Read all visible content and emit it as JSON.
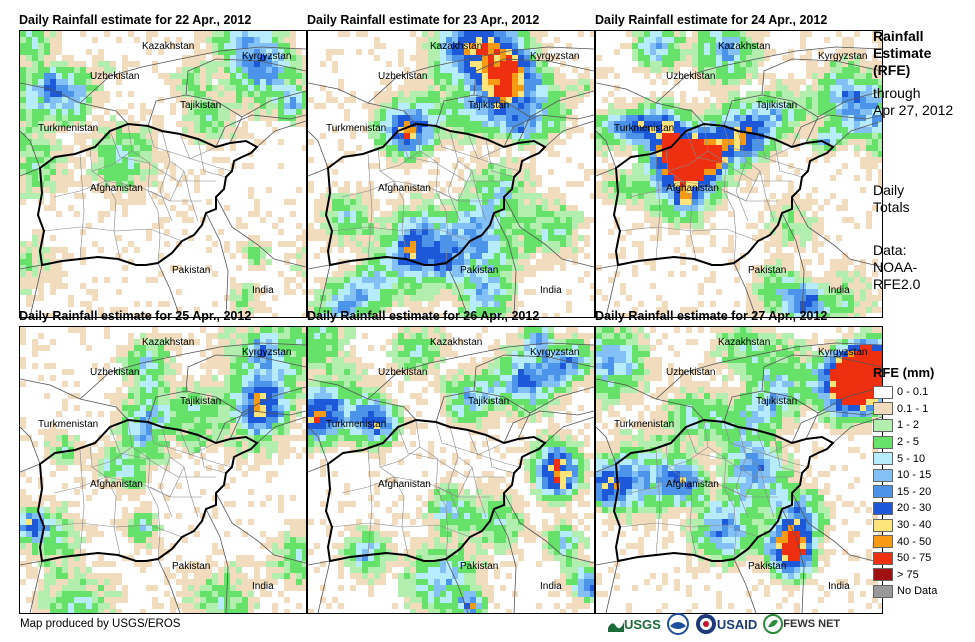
{
  "panels": [
    {
      "title": "Daily Rainfall estimate for 22 Apr., 2012",
      "date": "22 Apr., 2012",
      "seed": 22,
      "density": 0.9
    },
    {
      "title": "Daily Rainfall estimate for 23 Apr., 2012",
      "date": "23 Apr., 2012",
      "seed": 23,
      "density": 1.0
    },
    {
      "title": "Daily Rainfall estimate for 24 Apr., 2012",
      "date": "24 Apr., 2012",
      "seed": 24,
      "density": 1.1
    },
    {
      "title": "Daily Rainfall estimate for 25 Apr., 2012",
      "date": "25 Apr., 2012",
      "seed": 25,
      "density": 1.0
    },
    {
      "title": "Daily Rainfall estimate for 26 Apr., 2012",
      "date": "26 Apr., 2012",
      "seed": 26,
      "density": 1.35
    },
    {
      "title": "Daily Rainfall estimate for 27 Apr., 2012",
      "date": "27 Apr., 2012",
      "seed": 27,
      "density": 1.25
    }
  ],
  "map_labels": {
    "kazakhstan": "Kazakhstan",
    "kyrgyzstan": "Kyrgyzstan",
    "uzbekistan": "Uzbekistan",
    "tajikistan": "Tajikistan",
    "turkmenistan": "Turkmenistan",
    "afghanistan": "Afghanistan",
    "pakistan": "Pakistan",
    "india": "India"
  },
  "sidebar": {
    "title_lines": [
      "Rainfall",
      "Estimate",
      "(RFE)"
    ],
    "through_lines": [
      "through",
      "Apr 27, 2012"
    ],
    "totals_lines": [
      "Daily",
      "Totals"
    ],
    "source_lines": [
      "Data:",
      "NOAA-",
      "RFE2.0"
    ]
  },
  "legend": {
    "title": "RFE (mm)",
    "items": [
      {
        "label": "0 - 0.1",
        "color": "#ffffff"
      },
      {
        "label": "0.1 - 1",
        "color": "#f1dcbe"
      },
      {
        "label": "1 - 2",
        "color": "#b2eeae"
      },
      {
        "label": "2 - 5",
        "color": "#66e16a"
      },
      {
        "label": "5 - 10",
        "color": "#b6ecfc"
      },
      {
        "label": "10 - 15",
        "color": "#82c0f6"
      },
      {
        "label": "15 - 20",
        "color": "#4c94ea"
      },
      {
        "label": "20 - 30",
        "color": "#1c58d8"
      },
      {
        "label": "30 - 40",
        "color": "#fde57c"
      },
      {
        "label": "40 - 50",
        "color": "#f89a14"
      },
      {
        "label": "50 - 75",
        "color": "#ef3010"
      },
      {
        "label": "> 75",
        "color": "#a01010"
      },
      {
        "label": "No Data",
        "color": "#999999"
      }
    ]
  },
  "footer": {
    "credit": "Map produced by USGS/EROS",
    "logos": [
      {
        "name": "usgs-logo",
        "text": "USGS",
        "color": "#1b6a3a"
      },
      {
        "name": "noaa-logo",
        "text": "",
        "color": "#1e4f9e"
      },
      {
        "name": "usaid-logo",
        "text": "USAID",
        "color": "#c8102e"
      },
      {
        "name": "fewsnet-logo",
        "text": "FEWS NET",
        "color": "#2a8a3a"
      }
    ]
  }
}
